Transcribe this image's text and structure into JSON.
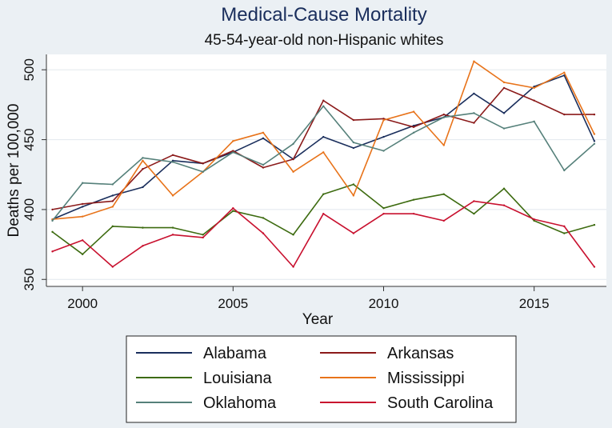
{
  "chart_data": {
    "type": "line",
    "title": "Medical-Cause Mortality",
    "subtitle": "45-54-year-old non-Hispanic whites",
    "xlabel": "Year",
    "ylabel": "Deaths per 100,000",
    "xlim": [
      1998.8,
      2017.4
    ],
    "ylim": [
      345,
      511
    ],
    "xticks": [
      2000,
      2005,
      2010,
      2015
    ],
    "xtick_labels": [
      "2000",
      "2005",
      "2010",
      "2015"
    ],
    "yticks": [
      350,
      400,
      450,
      500
    ],
    "ytick_labels": [
      "350",
      "400",
      "450",
      "500"
    ],
    "grid": "horizontal",
    "legend_position": "bottom",
    "x": [
      1999,
      2000,
      2001,
      2002,
      2003,
      2004,
      2005,
      2006,
      2007,
      2008,
      2009,
      2010,
      2011,
      2012,
      2013,
      2014,
      2015,
      2016,
      2017
    ],
    "series": [
      {
        "name": "Alabama",
        "color": "#1a2e5c",
        "values": [
          393,
          402,
          410,
          416,
          435,
          433,
          441,
          451,
          436,
          452,
          444,
          452,
          460,
          466,
          483,
          469,
          488,
          496,
          449
        ]
      },
      {
        "name": "Arkansas",
        "color": "#8b1a1a",
        "values": [
          400,
          404,
          406,
          429,
          439,
          433,
          442,
          430,
          436,
          478,
          464,
          465,
          459,
          468,
          462,
          487,
          478,
          468,
          468
        ]
      },
      {
        "name": "Louisiana",
        "color": "#3d6b10",
        "values": [
          384,
          368,
          388,
          387,
          387,
          382,
          399,
          394,
          382,
          411,
          418,
          401,
          407,
          411,
          397,
          415,
          392,
          383,
          389
        ]
      },
      {
        "name": "Mississippi",
        "color": "#e8731a",
        "values": [
          393,
          395,
          402,
          435,
          410,
          427,
          449,
          455,
          427,
          441,
          410,
          464,
          470,
          446,
          506,
          491,
          487,
          498,
          454
        ]
      },
      {
        "name": "Oklahoma",
        "color": "#55807a",
        "values": [
          392,
          419,
          418,
          437,
          434,
          427,
          441,
          432,
          447,
          474,
          448,
          442,
          455,
          466,
          469,
          458,
          463,
          428,
          447
        ]
      },
      {
        "name": "South Carolina",
        "color": "#c8102e",
        "values": [
          370,
          378,
          359,
          374,
          382,
          380,
          401,
          383,
          359,
          397,
          383,
          397,
          397,
          392,
          406,
          403,
          393,
          388,
          359
        ]
      }
    ]
  }
}
